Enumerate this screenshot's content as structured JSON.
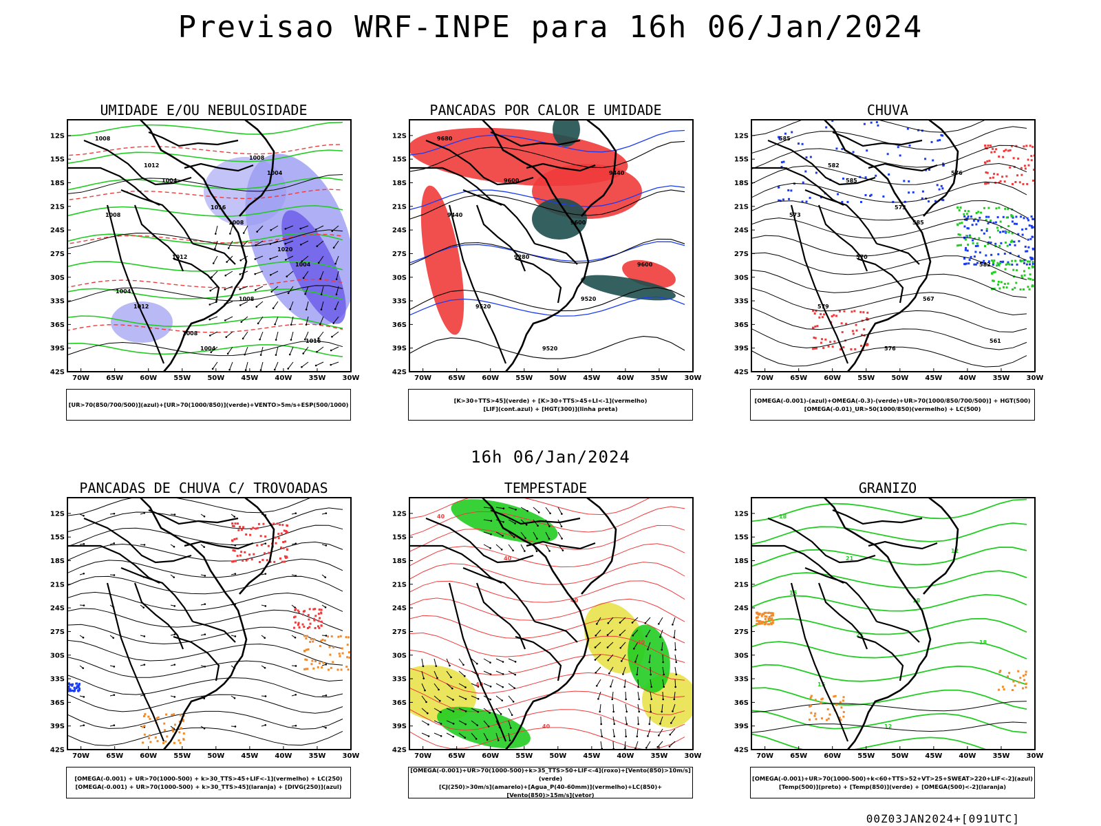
{
  "header": {
    "title": "Previsao WRF-INPE  para 16h 06/Jan/2024"
  },
  "middle": {
    "date": "16h 06/Jan/2024"
  },
  "footer": {
    "run": "00Z03JAN2024+[091UTC]"
  },
  "axes": {
    "lat_labels": [
      "12S",
      "15S",
      "18S",
      "21S",
      "24S",
      "27S",
      "30S",
      "33S",
      "36S",
      "39S",
      "42S"
    ],
    "lon_labels": [
      "70W",
      "65W",
      "60W",
      "55W",
      "50W",
      "45W",
      "40W",
      "35W",
      "30W"
    ]
  },
  "colors": {
    "rh_blue": "#9b9bf2",
    "rh_deep": "#6a5ae8",
    "green": "#22cc22",
    "red": "#ef3b3b",
    "dark_teal": "#1f4f4f",
    "blue": "#1a3cf0",
    "yellow": "#e6e040",
    "orange": "#f28a2a"
  },
  "panels": [
    {
      "title": "UMIDADE E/OU NEBULOSIDADE",
      "legend": [
        "[UR>70(850/700/500)](azul)+[UR>70(1000/850)](verde)+VENTO>5m/s+ESP(500/1000)"
      ],
      "contour_labels": [
        "1008",
        "1004",
        "1008",
        "1004",
        "1012",
        "1004",
        "1004",
        "1008",
        "1012",
        "1008",
        "1016",
        "1012",
        "1016",
        "1020",
        "1004",
        "1008",
        "1008"
      ]
    },
    {
      "title": "PANCADAS POR CALOR E UMIDADE",
      "legend": [
        "[K>30+TTS>45](verde) + [K>30+TTS>45+LI<-1](vermelho)",
        "[LIF](cont.azul) + [HGT(300)](linha preta)"
      ],
      "contour_labels": [
        "9680",
        "9600",
        "9600",
        "9600",
        "9520",
        "9520",
        "9440",
        "9440",
        "9280",
        "9520"
      ]
    },
    {
      "title": "CHUVA",
      "legend": [
        "[OMEGA(-0.001)-(azul)+OMEGA(-0.3)-(verde)+UR>70(1000/850/700/500)] + HGT(500)",
        "[OMEGA(-0.01)_UR>50(1000/850)(vermelho) + LC(500)"
      ],
      "contour_labels": [
        "585",
        "585",
        "585",
        "582",
        "579",
        "576",
        "576",
        "573",
        "570",
        "567",
        "561",
        "582",
        "573"
      ]
    },
    {
      "title": "PANCADAS DE CHUVA C/ TROVOADAS",
      "legend": [
        "[OMEGA(-0.001) + UR>70(1000-500) + k>30_TTS>45+LIF<-1](vermelho) + LC(250)",
        "[OMEGA(-0.001) + UR>70(1000-500) + k>30_TTS>45](laranja) + [DIVG(250)](azul)"
      ],
      "contour_labels": []
    },
    {
      "title": "TEMPESTADE",
      "legend": [
        "[OMEGA(-0.001)+UR>70(1000-500)+k>35_TTS>50+LIF<-4](roxo)+[Vento(850)>10m/s](verde)",
        "[CJ(250)>30m/s](amarelo)+[Agua_P(40-60mm)](vermelho)+LC(850)+[Vento(850)>15m/s](vetor)"
      ],
      "contour_labels": [
        "40",
        "40",
        "40",
        "40",
        "40",
        "40"
      ]
    },
    {
      "title": "GRANIZO",
      "legend": [
        "[OMEGA(-0.001)+UR>70(1000-500)+k<60+TTS>52+VT>25+SWEAT>220+LIF<-2](azul)",
        "[Temp(500)](preto) + [Temp(850)](verde) + [OMEGA(500)<-2](laranja)"
      ],
      "contour_labels": [
        "18",
        "21",
        "18",
        "18",
        "15",
        "12",
        "12",
        "15",
        "21"
      ]
    }
  ]
}
